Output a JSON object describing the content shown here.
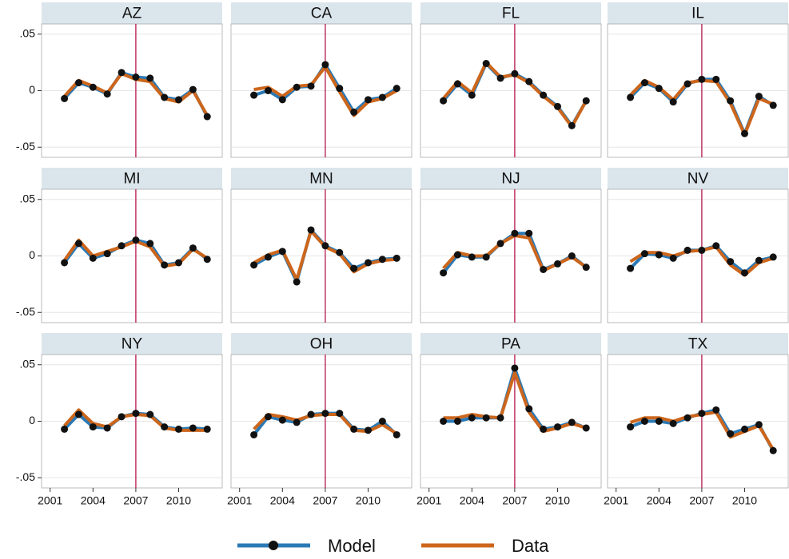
{
  "chart_data": [
    {
      "type": "line",
      "title": "AZ",
      "x": [
        2002,
        2003,
        2004,
        2005,
        2006,
        2007,
        2008,
        2009,
        2010,
        2011,
        2012
      ],
      "xlim": [
        2000.4,
        2013.05
      ],
      "ylim": [
        -0.059,
        0.059
      ],
      "yticks": [
        {
          "value": -0.05,
          "label": "-.05"
        },
        0,
        {
          "value": 0.05,
          "label": ".05"
        }
      ],
      "grid": true,
      "vline": 2007,
      "vline_color": "#b5174f",
      "series": [
        {
          "name": "Model",
          "color": "#2b79b5",
          "values": [
            -0.007,
            0.007,
            0.003,
            -0.003,
            0.016,
            0.012,
            0.011,
            -0.006,
            -0.008,
            0.001,
            -0.023
          ]
        },
        {
          "name": "Data",
          "color": "#cc661c",
          "values": [
            -0.005,
            0.009,
            0.004,
            -0.002,
            0.015,
            0.01,
            0.008,
            -0.007,
            -0.01,
            0.0,
            -0.022
          ]
        }
      ]
    },
    {
      "type": "line",
      "title": "CA",
      "x": [
        2002,
        2003,
        2004,
        2005,
        2006,
        2007,
        2008,
        2009,
        2010,
        2011,
        2012
      ],
      "xlim": [
        2000.4,
        2013.05
      ],
      "ylim": [
        -0.059,
        0.059
      ],
      "yticks": [
        -0.05,
        0,
        0.05
      ],
      "grid": true,
      "vline": 2007,
      "vline_color": "#b5174f",
      "series": [
        {
          "color": "#2b79b5",
          "values": [
            -0.004,
            0.0,
            -0.008,
            0.003,
            0.004,
            0.023,
            0.002,
            -0.019,
            -0.008,
            -0.006,
            0.002
          ]
        },
        {
          "color": "#cc661c",
          "values": [
            0.001,
            0.003,
            -0.005,
            0.004,
            0.005,
            0.021,
            -0.001,
            -0.022,
            -0.01,
            -0.007,
            0.0
          ]
        }
      ]
    },
    {
      "type": "line",
      "title": "FL",
      "x": [
        2002,
        2003,
        2004,
        2005,
        2006,
        2007,
        2008,
        2009,
        2010,
        2011,
        2012
      ],
      "xlim": [
        2000.4,
        2013.05
      ],
      "ylim": [
        -0.059,
        0.059
      ],
      "yticks": [
        -0.05,
        0,
        0.05
      ],
      "grid": true,
      "vline": 2007,
      "vline_color": "#b5174f",
      "series": [
        {
          "color": "#2b79b5",
          "values": [
            -0.009,
            0.006,
            -0.004,
            0.024,
            0.011,
            0.015,
            0.008,
            -0.004,
            -0.014,
            -0.031,
            -0.009
          ]
        },
        {
          "color": "#cc661c",
          "values": [
            -0.007,
            0.008,
            -0.002,
            0.025,
            0.012,
            0.014,
            0.007,
            -0.005,
            -0.015,
            -0.032,
            -0.009
          ]
        }
      ]
    },
    {
      "type": "line",
      "title": "IL",
      "x": [
        2002,
        2003,
        2004,
        2005,
        2006,
        2007,
        2008,
        2009,
        2010,
        2011,
        2012
      ],
      "xlim": [
        2000.4,
        2013.05
      ],
      "ylim": [
        -0.059,
        0.059
      ],
      "yticks": [
        -0.05,
        0,
        0.05
      ],
      "grid": true,
      "vline": 2007,
      "vline_color": "#b5174f",
      "series": [
        {
          "color": "#2b79b5",
          "values": [
            -0.006,
            0.007,
            0.002,
            -0.01,
            0.006,
            0.01,
            0.01,
            -0.009,
            -0.038,
            -0.005,
            -0.013
          ]
        },
        {
          "color": "#cc661c",
          "values": [
            -0.004,
            0.009,
            0.003,
            -0.008,
            0.007,
            0.009,
            0.008,
            -0.011,
            -0.039,
            -0.007,
            -0.012
          ]
        }
      ]
    },
    {
      "type": "line",
      "title": "MI",
      "x": [
        2002,
        2003,
        2004,
        2005,
        2006,
        2007,
        2008,
        2009,
        2010,
        2011,
        2012
      ],
      "xlim": [
        2000.4,
        2013.05
      ],
      "ylim": [
        -0.059,
        0.059
      ],
      "yticks": [
        {
          "value": -0.05,
          "label": "-.05"
        },
        0,
        {
          "value": 0.05,
          "label": ".05"
        }
      ],
      "grid": true,
      "vline": 2007,
      "vline_color": "#b5174f",
      "series": [
        {
          "color": "#2b79b5",
          "values": [
            -0.006,
            0.011,
            -0.002,
            0.002,
            0.009,
            0.014,
            0.011,
            -0.008,
            -0.006,
            0.007,
            -0.003
          ]
        },
        {
          "color": "#cc661c",
          "values": [
            -0.004,
            0.014,
            0.0,
            0.004,
            0.008,
            0.013,
            0.008,
            -0.009,
            -0.007,
            0.006,
            -0.002
          ]
        }
      ]
    },
    {
      "type": "line",
      "title": "MN",
      "x": [
        2002,
        2003,
        2004,
        2005,
        2006,
        2007,
        2008,
        2009,
        2010,
        2011,
        2012
      ],
      "xlim": [
        2000.4,
        2013.05
      ],
      "ylim": [
        -0.059,
        0.059
      ],
      "yticks": [
        -0.05,
        0,
        0.05
      ],
      "grid": true,
      "vline": 2007,
      "vline_color": "#b5174f",
      "series": [
        {
          "color": "#2b79b5",
          "values": [
            -0.008,
            -0.001,
            0.004,
            -0.023,
            0.023,
            0.009,
            0.003,
            -0.011,
            -0.006,
            -0.003,
            -0.002
          ]
        },
        {
          "color": "#cc661c",
          "values": [
            -0.006,
            0.001,
            0.005,
            -0.021,
            0.022,
            0.008,
            0.002,
            -0.014,
            -0.007,
            -0.004,
            -0.003
          ]
        }
      ]
    },
    {
      "type": "line",
      "title": "NJ",
      "x": [
        2002,
        2003,
        2004,
        2005,
        2006,
        2007,
        2008,
        2009,
        2010,
        2011,
        2012
      ],
      "xlim": [
        2000.4,
        2013.05
      ],
      "ylim": [
        -0.059,
        0.059
      ],
      "yticks": [
        -0.05,
        0,
        0.05
      ],
      "grid": true,
      "vline": 2007,
      "vline_color": "#b5174f",
      "series": [
        {
          "color": "#2b79b5",
          "values": [
            -0.015,
            0.001,
            -0.001,
            -0.001,
            0.011,
            0.02,
            0.02,
            -0.012,
            -0.007,
            0.0,
            -0.01
          ]
        },
        {
          "color": "#cc661c",
          "values": [
            -0.011,
            0.003,
            0.0,
            0.0,
            0.011,
            0.018,
            0.016,
            -0.013,
            -0.007,
            -0.001,
            -0.01
          ]
        }
      ]
    },
    {
      "type": "line",
      "title": "NV",
      "x": [
        2002,
        2003,
        2004,
        2005,
        2006,
        2007,
        2008,
        2009,
        2010,
        2011,
        2012
      ],
      "xlim": [
        2000.4,
        2013.05
      ],
      "ylim": [
        -0.059,
        0.059
      ],
      "yticks": [
        -0.05,
        0,
        0.05
      ],
      "grid": true,
      "vline": 2007,
      "vline_color": "#b5174f",
      "series": [
        {
          "color": "#2b79b5",
          "values": [
            -0.011,
            0.002,
            0.001,
            -0.002,
            0.005,
            0.005,
            0.009,
            -0.005,
            -0.015,
            -0.004,
            -0.001
          ]
        },
        {
          "color": "#cc661c",
          "values": [
            -0.005,
            0.003,
            0.003,
            0.0,
            0.004,
            0.005,
            0.008,
            -0.008,
            -0.017,
            -0.006,
            -0.002
          ]
        }
      ]
    },
    {
      "type": "line",
      "title": "NY",
      "x": [
        2002,
        2003,
        2004,
        2005,
        2006,
        2007,
        2008,
        2009,
        2010,
        2011,
        2012
      ],
      "xlim": [
        2000.4,
        2013.05
      ],
      "ylim": [
        -0.059,
        0.059
      ],
      "yticks": [
        {
          "value": -0.05,
          "label": "-.05"
        },
        0,
        {
          "value": 0.05,
          "label": ".05"
        }
      ],
      "xticks": [
        2001,
        2004,
        2007,
        2010
      ],
      "grid": true,
      "vline": 2007,
      "vline_color": "#b5174f",
      "series": [
        {
          "color": "#2b79b5",
          "values": [
            -0.007,
            0.006,
            -0.005,
            -0.006,
            0.004,
            0.007,
            0.006,
            -0.005,
            -0.007,
            -0.006,
            -0.007
          ]
        },
        {
          "color": "#cc661c",
          "values": [
            -0.004,
            0.01,
            -0.002,
            -0.005,
            0.004,
            0.006,
            0.005,
            -0.006,
            -0.008,
            -0.008,
            -0.008
          ]
        }
      ]
    },
    {
      "type": "line",
      "title": "OH",
      "x": [
        2002,
        2003,
        2004,
        2005,
        2006,
        2007,
        2008,
        2009,
        2010,
        2011,
        2012
      ],
      "xlim": [
        2000.4,
        2013.05
      ],
      "ylim": [
        -0.059,
        0.059
      ],
      "yticks": [
        -0.05,
        0,
        0.05
      ],
      "xticks": [
        2001,
        2004,
        2007,
        2010
      ],
      "grid": true,
      "vline": 2007,
      "vline_color": "#b5174f",
      "series": [
        {
          "color": "#2b79b5",
          "values": [
            -0.012,
            0.004,
            0.001,
            -0.001,
            0.006,
            0.007,
            0.007,
            -0.007,
            -0.008,
            0.0,
            -0.012
          ]
        },
        {
          "color": "#cc661c",
          "values": [
            -0.007,
            0.006,
            0.004,
            0.001,
            0.005,
            0.006,
            0.006,
            -0.008,
            -0.009,
            -0.003,
            -0.011
          ]
        }
      ]
    },
    {
      "type": "line",
      "title": "PA",
      "x": [
        2002,
        2003,
        2004,
        2005,
        2006,
        2007,
        2008,
        2009,
        2010,
        2011,
        2012
      ],
      "xlim": [
        2000.4,
        2013.05
      ],
      "ylim": [
        -0.059,
        0.059
      ],
      "yticks": [
        -0.05,
        0,
        0.05
      ],
      "xticks": [
        2001,
        2004,
        2007,
        2010
      ],
      "grid": true,
      "vline": 2007,
      "vline_color": "#b5174f",
      "series": [
        {
          "color": "#2b79b5",
          "values": [
            0.0,
            0.0,
            0.003,
            0.003,
            0.003,
            0.047,
            0.011,
            -0.007,
            -0.005,
            -0.001,
            -0.006
          ]
        },
        {
          "color": "#cc661c",
          "values": [
            0.003,
            0.003,
            0.006,
            0.004,
            0.003,
            0.043,
            0.008,
            -0.009,
            -0.006,
            -0.002,
            -0.006
          ]
        }
      ]
    },
    {
      "type": "line",
      "title": "TX",
      "x": [
        2002,
        2003,
        2004,
        2005,
        2006,
        2007,
        2008,
        2009,
        2010,
        2011,
        2012
      ],
      "xlim": [
        2000.4,
        2013.05
      ],
      "ylim": [
        -0.059,
        0.059
      ],
      "yticks": [
        -0.05,
        0,
        0.05
      ],
      "xticks": [
        2001,
        2004,
        2007,
        2010
      ],
      "grid": true,
      "vline": 2007,
      "vline_color": "#b5174f",
      "series": [
        {
          "color": "#2b79b5",
          "values": [
            -0.005,
            0.0,
            0.0,
            -0.002,
            0.003,
            0.007,
            0.01,
            -0.011,
            -0.007,
            -0.003,
            -0.026
          ]
        },
        {
          "color": "#cc661c",
          "values": [
            -0.001,
            0.003,
            0.003,
            0.0,
            0.004,
            0.006,
            0.008,
            -0.014,
            -0.009,
            -0.004,
            -0.025
          ]
        }
      ]
    }
  ]
}
